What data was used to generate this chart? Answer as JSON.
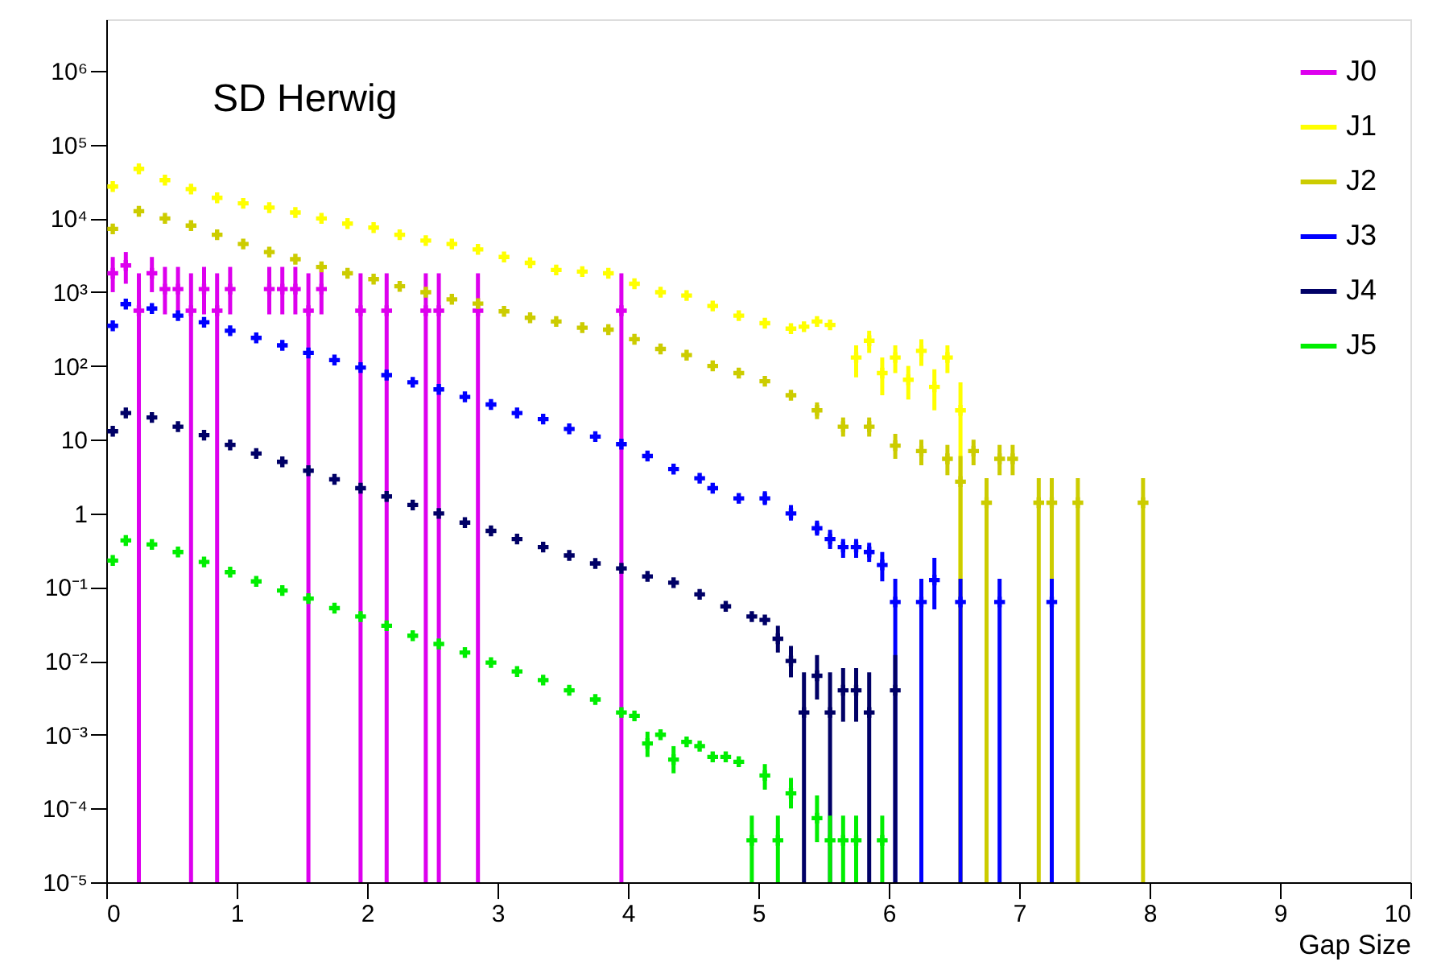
{
  "chart_data": {
    "type": "scatter",
    "title": "SD Herwig",
    "xlabel": "Gap Size",
    "log": "y",
    "grid": false,
    "legend": "top right",
    "marker": "cross",
    "xlim": [
      0,
      10
    ],
    "xticks": [
      0,
      1,
      2,
      3,
      4,
      5,
      6,
      7,
      8,
      9,
      10
    ],
    "ylim": [
      1e-05,
      5000000
    ],
    "yticks": [
      {
        "value": 1e-05,
        "label": "10⁻⁵"
      },
      {
        "value": 0.0001,
        "label": "10⁻⁴"
      },
      {
        "value": 0.001,
        "label": "10⁻³"
      },
      {
        "value": 0.01,
        "label": "10⁻²"
      },
      {
        "value": 0.1,
        "label": "10⁻¹"
      },
      1,
      10,
      {
        "value": 100,
        "label": "10²"
      },
      {
        "value": 1000,
        "label": "10³"
      },
      {
        "value": 10000,
        "label": "10⁴"
      },
      {
        "value": 100000,
        "label": "10⁵"
      },
      {
        "value": 1000000,
        "label": "10⁶"
      }
    ],
    "series": [
      {
        "name": "J0",
        "color": "#dd00ee",
        "x": [
          0.05,
          0.15,
          0.25,
          0.35,
          0.45,
          0.55,
          0.65,
          0.75,
          0.85,
          0.95,
          1.25,
          1.35,
          1.45,
          1.55,
          1.65,
          1.95,
          2.15,
          2.45,
          2.55,
          2.85,
          3.95
        ],
        "values": [
          1800,
          2300,
          560,
          1800,
          1100,
          1100,
          560,
          1100,
          560,
          1100,
          1100,
          1100,
          1100,
          560,
          1100,
          560,
          560,
          560,
          560,
          560,
          560
        ],
        "errors": [
          [
            1000,
            3000
          ],
          [
            1300,
            3500
          ],
          [
            1e-05,
            1800
          ],
          [
            1000,
            3000
          ],
          [
            500,
            2200
          ],
          [
            500,
            2200
          ],
          [
            1e-05,
            1800
          ],
          [
            500,
            2200
          ],
          [
            1e-05,
            1800
          ],
          [
            500,
            2200
          ],
          [
            500,
            2200
          ],
          [
            500,
            2200
          ],
          [
            500,
            2200
          ],
          [
            1e-05,
            1800
          ],
          [
            500,
            2200
          ],
          [
            1e-05,
            1800
          ],
          [
            1e-05,
            1800
          ],
          [
            1e-05,
            1800
          ],
          [
            1e-05,
            1800
          ],
          [
            1e-05,
            1800
          ],
          [
            1e-05,
            1800
          ]
        ]
      },
      {
        "name": "J1",
        "color": "#ffff00",
        "x": [
          0.05,
          0.25,
          0.45,
          0.65,
          0.85,
          1.05,
          1.25,
          1.45,
          1.65,
          1.85,
          2.05,
          2.25,
          2.45,
          2.65,
          2.85,
          3.05,
          3.25,
          3.45,
          3.65,
          3.85,
          4.05,
          4.25,
          4.45,
          4.65,
          4.85,
          5.05,
          5.25,
          5.35,
          5.45,
          5.55,
          5.75,
          5.85,
          5.95,
          6.05,
          6.15,
          6.25,
          6.35,
          6.45,
          6.55
        ],
        "values": [
          27000,
          47000,
          33000,
          25000,
          19000,
          16000,
          14000,
          12000,
          10000,
          8500,
          7500,
          6000,
          5000,
          4500,
          3800,
          3000,
          2500,
          2000,
          1900,
          1800,
          1300,
          1000,
          900,
          650,
          480,
          380,
          320,
          340,
          400,
          360,
          130,
          220,
          80,
          130,
          65,
          160,
          52,
          130,
          25
        ],
        "errors": [
          null,
          null,
          null,
          null,
          null,
          null,
          null,
          null,
          null,
          null,
          null,
          null,
          null,
          null,
          null,
          null,
          null,
          null,
          null,
          null,
          null,
          null,
          null,
          null,
          null,
          null,
          null,
          null,
          null,
          null,
          [
            70,
            190
          ],
          [
            150,
            300
          ],
          [
            40,
            130
          ],
          [
            80,
            190
          ],
          [
            35,
            100
          ],
          [
            100,
            230
          ],
          [
            25,
            90
          ],
          [
            80,
            190
          ],
          [
            1e-05,
            60
          ]
        ]
      },
      {
        "name": "J2",
        "color": "#cccc00",
        "x": [
          0.05,
          0.25,
          0.45,
          0.65,
          0.85,
          1.05,
          1.25,
          1.45,
          1.65,
          1.85,
          2.05,
          2.25,
          2.45,
          2.65,
          2.85,
          3.05,
          3.25,
          3.45,
          3.65,
          3.85,
          4.05,
          4.25,
          4.45,
          4.65,
          4.85,
          5.05,
          5.25,
          5.45,
          5.65,
          5.85,
          6.05,
          6.25,
          6.45,
          6.55,
          6.65,
          6.75,
          6.85,
          6.95,
          7.15,
          7.25,
          7.45,
          7.95
        ],
        "values": [
          7200,
          12500,
          10000,
          8000,
          6000,
          4500,
          3500,
          2800,
          2200,
          1800,
          1500,
          1200,
          1000,
          800,
          700,
          550,
          450,
          400,
          330,
          310,
          230,
          170,
          140,
          100,
          80,
          62,
          40,
          25,
          15,
          15,
          8.3,
          7,
          5.5,
          2.7,
          7,
          1.4,
          5.5,
          5.5,
          1.4,
          1.4,
          1.4,
          1.4
        ],
        "errors": [
          null,
          null,
          null,
          null,
          null,
          null,
          null,
          null,
          null,
          null,
          null,
          null,
          null,
          null,
          null,
          null,
          null,
          null,
          null,
          null,
          null,
          null,
          null,
          null,
          null,
          null,
          null,
          [
            19,
            32
          ],
          [
            11,
            20
          ],
          [
            11,
            20
          ],
          [
            5.5,
            12
          ],
          [
            4.5,
            10
          ],
          [
            3.3,
            8.5
          ],
          [
            1e-05,
            6
          ],
          [
            4.5,
            10
          ],
          [
            1e-05,
            3
          ],
          [
            3.3,
            8.5
          ],
          [
            3.3,
            8.5
          ],
          [
            1e-05,
            3
          ],
          [
            1e-05,
            3
          ],
          [
            1e-05,
            3
          ],
          [
            1e-05,
            3
          ]
        ]
      },
      {
        "name": "J3",
        "color": "#0000ff",
        "x": [
          0.05,
          0.15,
          0.35,
          0.55,
          0.75,
          0.95,
          1.15,
          1.35,
          1.55,
          1.75,
          1.95,
          2.15,
          2.35,
          2.55,
          2.75,
          2.95,
          3.15,
          3.35,
          3.55,
          3.75,
          3.95,
          4.15,
          4.35,
          4.55,
          4.65,
          4.85,
          5.05,
          5.25,
          5.45,
          5.55,
          5.65,
          5.75,
          5.85,
          5.95,
          6.05,
          6.25,
          6.35,
          6.55,
          6.85,
          7.25
        ],
        "values": [
          350,
          690,
          600,
          480,
          390,
          300,
          240,
          190,
          150,
          120,
          95,
          75,
          60,
          48,
          38,
          30,
          23,
          19,
          14,
          11,
          8.7,
          6,
          4,
          3,
          2.2,
          1.6,
          1.6,
          1.0,
          0.63,
          0.45,
          0.35,
          0.35,
          0.3,
          0.2,
          0.063,
          0.063,
          0.125,
          0.063,
          0.063,
          0.063
        ],
        "errors": [
          null,
          null,
          null,
          null,
          null,
          null,
          null,
          null,
          null,
          null,
          null,
          null,
          null,
          null,
          null,
          null,
          null,
          null,
          null,
          null,
          null,
          null,
          null,
          null,
          null,
          null,
          [
            1.3,
            2.0
          ],
          [
            0.8,
            1.3
          ],
          [
            0.5,
            0.8
          ],
          [
            0.33,
            0.6
          ],
          [
            0.25,
            0.45
          ],
          [
            0.25,
            0.45
          ],
          [
            0.22,
            0.4
          ],
          [
            0.12,
            0.3
          ],
          [
            1e-05,
            0.13
          ],
          [
            1e-05,
            0.13
          ],
          [
            0.05,
            0.25
          ],
          [
            1e-05,
            0.13
          ],
          [
            1e-05,
            0.13
          ],
          [
            1e-05,
            0.13
          ]
        ]
      },
      {
        "name": "J4",
        "color": "#000066",
        "x": [
          0.05,
          0.15,
          0.35,
          0.55,
          0.75,
          0.95,
          1.15,
          1.35,
          1.55,
          1.75,
          1.95,
          2.15,
          2.35,
          2.55,
          2.75,
          2.95,
          3.15,
          3.35,
          3.55,
          3.75,
          3.95,
          4.15,
          4.35,
          4.55,
          4.75,
          4.95,
          5.05,
          5.15,
          5.25,
          5.35,
          5.45,
          5.55,
          5.65,
          5.75,
          5.85,
          6.05
        ],
        "values": [
          13,
          23,
          20,
          15,
          11.5,
          8.5,
          6.5,
          5,
          3.8,
          2.9,
          2.2,
          1.7,
          1.3,
          1.0,
          0.75,
          0.58,
          0.45,
          0.35,
          0.27,
          0.21,
          0.18,
          0.14,
          0.115,
          0.08,
          0.055,
          0.04,
          0.036,
          0.02,
          0.01,
          0.002,
          0.0063,
          0.002,
          0.004,
          0.004,
          0.002,
          0.004
        ],
        "errors": [
          null,
          null,
          null,
          null,
          null,
          null,
          null,
          null,
          null,
          null,
          null,
          null,
          null,
          null,
          null,
          null,
          null,
          null,
          null,
          null,
          null,
          null,
          null,
          null,
          null,
          null,
          null,
          [
            0.013,
            0.03
          ],
          [
            0.006,
            0.016
          ],
          [
            1e-05,
            0.007
          ],
          [
            0.003,
            0.012
          ],
          [
            1e-05,
            0.007
          ],
          [
            0.0015,
            0.008
          ],
          [
            0.0015,
            0.008
          ],
          [
            1e-05,
            0.007
          ],
          [
            1e-05,
            0.012
          ]
        ]
      },
      {
        "name": "J5",
        "color": "#00ee00",
        "x": [
          0.05,
          0.15,
          0.35,
          0.55,
          0.75,
          0.95,
          1.15,
          1.35,
          1.55,
          1.75,
          1.95,
          2.15,
          2.35,
          2.55,
          2.75,
          2.95,
          3.15,
          3.35,
          3.55,
          3.75,
          3.95,
          4.05,
          4.15,
          4.25,
          4.35,
          4.45,
          4.55,
          4.65,
          4.75,
          4.85,
          4.95,
          5.05,
          5.15,
          5.25,
          5.45,
          5.55,
          5.65,
          5.75,
          5.95
        ],
        "values": [
          0.23,
          0.43,
          0.38,
          0.3,
          0.22,
          0.16,
          0.12,
          0.09,
          0.07,
          0.052,
          0.04,
          0.03,
          0.022,
          0.017,
          0.013,
          0.0095,
          0.0072,
          0.0055,
          0.004,
          0.003,
          0.002,
          0.0018,
          0.00076,
          0.001,
          0.00046,
          0.0008,
          0.0007,
          0.0005,
          0.0005,
          0.00043,
          3.7e-05,
          0.00028,
          3.7e-05,
          0.00016,
          7.4e-05,
          3.7e-05,
          3.7e-05,
          3.7e-05,
          3.7e-05
        ],
        "errors": [
          null,
          null,
          null,
          null,
          null,
          null,
          null,
          null,
          null,
          null,
          null,
          null,
          null,
          null,
          null,
          null,
          null,
          null,
          null,
          null,
          null,
          null,
          [
            0.0005,
            0.0011
          ],
          null,
          [
            0.0003,
            0.0007
          ],
          null,
          null,
          null,
          null,
          null,
          [
            1e-05,
            8e-05
          ],
          [
            0.00018,
            0.0004
          ],
          [
            1e-05,
            8e-05
          ],
          [
            0.0001,
            0.00026
          ],
          [
            3.5e-05,
            0.00015
          ],
          [
            1e-05,
            8e-05
          ],
          [
            1e-05,
            8e-05
          ],
          [
            1e-05,
            8e-05
          ],
          [
            1e-05,
            8e-05
          ]
        ]
      }
    ]
  }
}
